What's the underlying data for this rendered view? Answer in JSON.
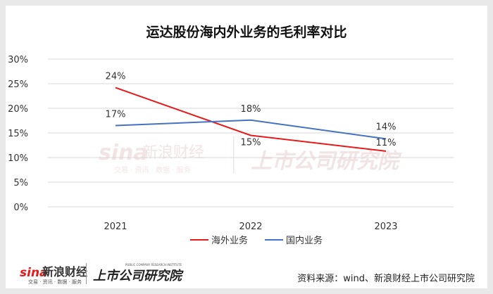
{
  "chart_data": {
    "type": "line",
    "title": "运达股份海内外业务的毛利率对比",
    "categories": [
      "2021",
      "2022",
      "2023"
    ],
    "y_ticks": [
      "0%",
      "5%",
      "10%",
      "15%",
      "20%",
      "25%",
      "30%"
    ],
    "ylim": [
      0,
      30
    ],
    "grid": true,
    "legend_position": "bottom",
    "series": [
      {
        "name": "海外业务",
        "color": "#e8191b",
        "values": [
          24.2,
          14.5,
          11.3
        ],
        "labels": [
          "24%",
          "15%",
          "11%"
        ]
      },
      {
        "name": "国内业务",
        "color": "#4472c4",
        "values": [
          16.5,
          17.6,
          13.8
        ],
        "labels": [
          "17%",
          "18%",
          "14%"
        ]
      }
    ]
  },
  "watermark": {
    "brand": "sina",
    "brand_name": "新浪财经",
    "brand_sub": "交易 · 资讯 · 数据 · 服务",
    "institute": "上市公司研究院"
  },
  "footer": {
    "logo_brand": "sina",
    "logo_name": "新浪财经",
    "logo_sub": "交易 · 资讯 · 数据 · 服务",
    "institute": "上市公司研究院",
    "institute_sub": "PUBLIC COMPANY RESEARCH INSTITUTE",
    "source": "资料来源：wind、新浪财经上市公司研究院"
  }
}
